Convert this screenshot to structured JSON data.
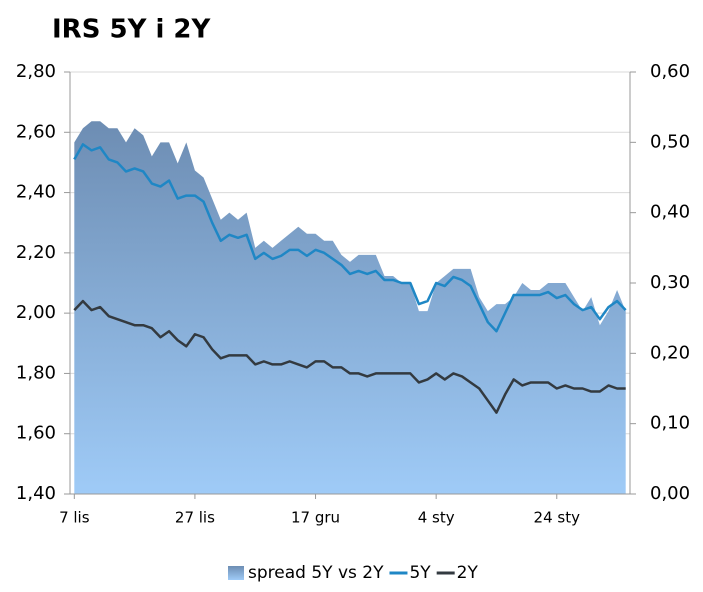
{
  "chart_data": {
    "type": "combo",
    "title": "IRS 5Y i 2Y",
    "categories": [
      "7 lis",
      null,
      null,
      null,
      null,
      null,
      null,
      null,
      null,
      null,
      null,
      null,
      null,
      null,
      "27 lis",
      null,
      null,
      null,
      null,
      null,
      null,
      null,
      null,
      null,
      null,
      null,
      null,
      null,
      "17 gru",
      null,
      null,
      null,
      null,
      null,
      null,
      null,
      null,
      null,
      null,
      null,
      null,
      null,
      "4 sty",
      null,
      null,
      null,
      null,
      null,
      null,
      null,
      null,
      null,
      null,
      null,
      null,
      null,
      "24 sty",
      null,
      null,
      null,
      null,
      null,
      null,
      null,
      null
    ],
    "series": [
      {
        "name": "spread 5Y vs 2Y",
        "type": "area",
        "axis": "y2",
        "color": "#7fa3cc",
        "values": [
          0.5,
          0.52,
          0.53,
          0.53,
          0.52,
          0.52,
          0.5,
          0.52,
          0.51,
          0.48,
          0.5,
          0.5,
          0.47,
          0.5,
          0.46,
          0.45,
          0.42,
          0.39,
          0.4,
          0.39,
          0.4,
          0.35,
          0.36,
          0.35,
          0.36,
          0.37,
          0.38,
          0.37,
          0.37,
          0.36,
          0.36,
          0.34,
          0.33,
          0.34,
          0.34,
          0.34,
          0.31,
          0.31,
          0.3,
          0.3,
          0.26,
          0.26,
          0.3,
          0.31,
          0.32,
          0.32,
          0.32,
          0.28,
          0.26,
          0.27,
          0.27,
          0.28,
          0.3,
          0.29,
          0.29,
          0.3,
          0.3,
          0.3,
          0.28,
          0.26,
          0.28,
          0.24,
          0.26,
          0.29,
          0.26
        ]
      },
      {
        "name": "5Y",
        "type": "line",
        "color": "#1f87c5",
        "values": [
          2.51,
          2.56,
          2.54,
          2.55,
          2.51,
          2.5,
          2.47,
          2.48,
          2.47,
          2.43,
          2.42,
          2.44,
          2.38,
          2.39,
          2.39,
          2.37,
          2.3,
          2.24,
          2.26,
          2.25,
          2.26,
          2.18,
          2.2,
          2.18,
          2.19,
          2.21,
          2.21,
          2.19,
          2.21,
          2.2,
          2.18,
          2.16,
          2.13,
          2.14,
          2.13,
          2.14,
          2.11,
          2.11,
          2.1,
          2.1,
          2.03,
          2.04,
          2.1,
          2.09,
          2.12,
          2.11,
          2.09,
          2.03,
          1.97,
          1.94,
          2.0,
          2.06,
          2.06,
          2.06,
          2.06,
          2.07,
          2.05,
          2.06,
          2.03,
          2.01,
          2.02,
          1.98,
          2.02,
          2.04,
          2.01
        ]
      },
      {
        "name": "2Y",
        "type": "line",
        "color": "#333a40",
        "values": [
          2.01,
          2.04,
          2.01,
          2.02,
          1.99,
          1.98,
          1.97,
          1.96,
          1.96,
          1.95,
          1.92,
          1.94,
          1.91,
          1.89,
          1.93,
          1.92,
          1.88,
          1.85,
          1.86,
          1.86,
          1.86,
          1.83,
          1.84,
          1.83,
          1.83,
          1.84,
          1.83,
          1.82,
          1.84,
          1.84,
          1.82,
          1.82,
          1.8,
          1.8,
          1.79,
          1.8,
          1.8,
          1.8,
          1.8,
          1.8,
          1.77,
          1.78,
          1.8,
          1.78,
          1.8,
          1.79,
          1.77,
          1.75,
          1.71,
          1.67,
          1.73,
          1.78,
          1.76,
          1.77,
          1.77,
          1.77,
          1.75,
          1.76,
          1.75,
          1.75,
          1.74,
          1.74,
          1.76,
          1.75,
          1.75
        ]
      }
    ],
    "ylim": [
      1.4,
      2.8
    ],
    "yticks": [
      {
        "value": 1.4,
        "label": "1,40"
      },
      {
        "value": 1.6,
        "label": "1,60"
      },
      {
        "value": 1.8,
        "label": "1,80"
      },
      {
        "value": 2.0,
        "label": "2,00"
      },
      {
        "value": 2.2,
        "label": "2,20"
      },
      {
        "value": 2.4,
        "label": "2,40"
      },
      {
        "value": 2.6,
        "label": "2,60"
      },
      {
        "value": 2.8,
        "label": "2,80"
      }
    ],
    "y2lim": [
      0,
      0.6
    ],
    "y2ticks": [
      {
        "value": 0,
        "label": "0,00"
      },
      {
        "value": 0.1,
        "label": "0,10"
      },
      {
        "value": 0.2,
        "label": "0,20"
      },
      {
        "value": 0.3,
        "label": "0,30"
      },
      {
        "value": 0.4,
        "label": "0,40"
      },
      {
        "value": 0.5,
        "label": "0,50"
      },
      {
        "value": 0.6,
        "label": "0,60"
      }
    ],
    "grid": true,
    "legend": "bottom"
  }
}
